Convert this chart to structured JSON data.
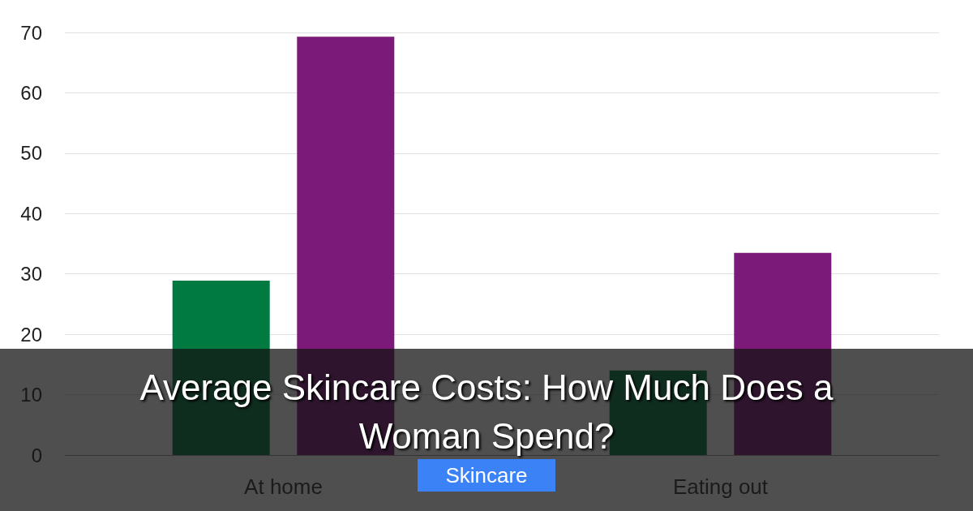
{
  "chart_data": {
    "type": "bar",
    "title": "Average Skincare Costs: How Much Does a Woman Spend?",
    "categories": [
      "At home",
      "Eating out"
    ],
    "series": [
      {
        "color": "#007a40",
        "values": [
          28.9,
          14
        ]
      },
      {
        "color": "#7b1a78",
        "values": [
          69.3,
          33.5
        ]
      }
    ],
    "ylim": [
      0,
      70
    ],
    "yticks": [
      0,
      10,
      20,
      30,
      40,
      50,
      60,
      70
    ],
    "grid": "y",
    "annotations": [
      "Skincare"
    ]
  }
}
